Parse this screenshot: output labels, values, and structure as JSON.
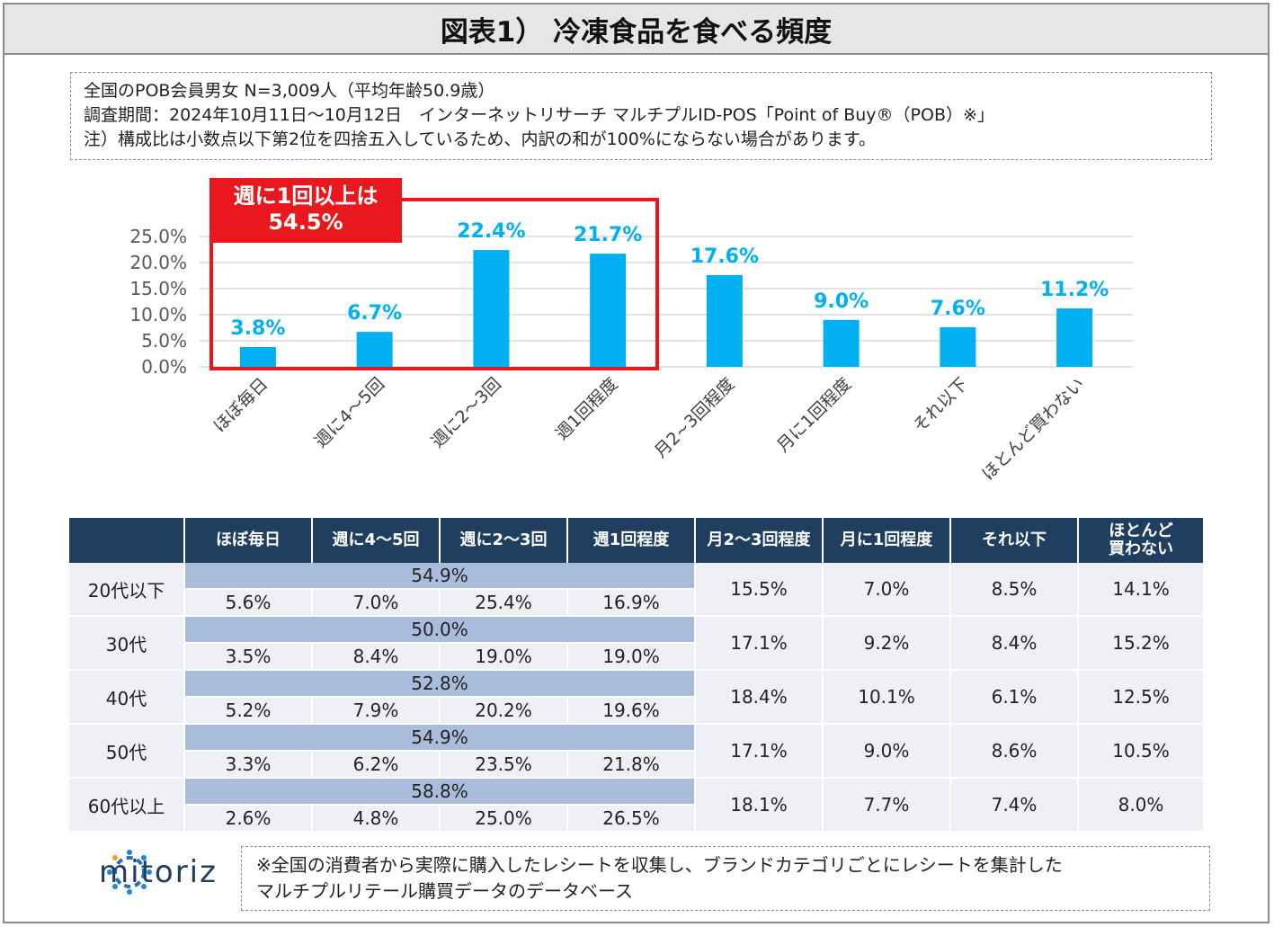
{
  "title": "図表1） 冷凍食品を食べる頻度",
  "info": {
    "line1": "全国のPOB会員男女 N=3,009人（平均年齢50.9歳）",
    "line2": "調査期間：2024年10月11日～10月12日　インターネットリサーチ マルチプルID-POS「Point of Buy®（POB）※」",
    "line3": "注）構成比は小数点以下第2位を四捨五入しているため、内訳の和が100%にならない場合があります。"
  },
  "callout": {
    "line1": "週に1回以上は",
    "line2": "54.5%"
  },
  "chart_data": {
    "type": "bar",
    "title": "冷凍食品を食べる頻度",
    "categories": [
      "ほぼ毎日",
      "週に4～5回",
      "週に2～3回",
      "週1回程度",
      "月2~3回程度",
      "月に1回程度",
      "それ以下",
      "ほとんど買わない"
    ],
    "values": [
      3.8,
      6.7,
      22.4,
      21.7,
      17.6,
      9.0,
      7.6,
      11.2
    ],
    "value_labels": [
      "3.8%",
      "6.7%",
      "22.4%",
      "21.7%",
      "17.6%",
      "9.0%",
      "7.6%",
      "11.2%"
    ],
    "y_ticks": [
      "0.0%",
      "5.0%",
      "10.0%",
      "15.0%",
      "20.0%",
      "25.0%"
    ],
    "ylim": [
      0,
      25
    ],
    "grid": true,
    "bar_color": "#00b0f0",
    "label_color": "#00b0f0",
    "xlabel": "",
    "ylabel": ""
  },
  "table": {
    "headers": [
      "",
      "ほぼ毎日",
      "週に4～5回",
      "週に2～3回",
      "週1回程度",
      "月2～3回程度",
      "月に1回程度",
      "それ以下",
      "ほとんど買わない"
    ],
    "header_last_line1": "ほとんど",
    "header_last_line2": "買わない",
    "rows": [
      {
        "age": "20代以下",
        "merged": "54.9%",
        "sub": [
          "5.6%",
          "7.0%",
          "25.4%",
          "16.9%"
        ],
        "other": [
          "15.5%",
          "7.0%",
          "8.5%",
          "14.1%"
        ]
      },
      {
        "age": "30代",
        "merged": "50.0%",
        "sub": [
          "3.5%",
          "8.4%",
          "19.0%",
          "19.0%"
        ],
        "other": [
          "17.1%",
          "9.2%",
          "8.4%",
          "15.2%"
        ]
      },
      {
        "age": "40代",
        "merged": "52.8%",
        "sub": [
          "5.2%",
          "7.9%",
          "20.2%",
          "19.6%"
        ],
        "other": [
          "18.4%",
          "10.1%",
          "6.1%",
          "12.5%"
        ]
      },
      {
        "age": "50代",
        "merged": "54.9%",
        "sub": [
          "3.3%",
          "6.2%",
          "23.5%",
          "21.8%"
        ],
        "other": [
          "17.1%",
          "9.0%",
          "8.6%",
          "10.5%"
        ]
      },
      {
        "age": "60代以上",
        "merged": "58.8%",
        "sub": [
          "2.6%",
          "4.8%",
          "25.0%",
          "26.5%"
        ],
        "other": [
          "18.1%",
          "7.7%",
          "7.4%",
          "8.0%"
        ]
      }
    ]
  },
  "logo": {
    "text": "mitoriz"
  },
  "note": {
    "line1": "※全国の消費者から実際に購入したレシートを収集し、ブランドカテゴリごとにレシートを集計した",
    "line2": "マルチプルリテール購買データのデータベース"
  },
  "colors": {
    "header_bg": "#1f3e60",
    "merged_bg": "#a9bcdc",
    "cell_bg": "#eef0f6",
    "accent_red": "#e8181e"
  }
}
